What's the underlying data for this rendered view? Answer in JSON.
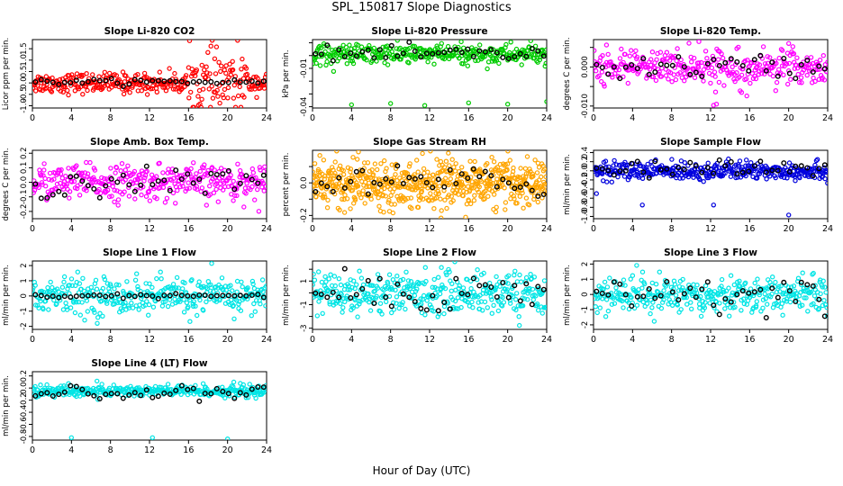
{
  "figure": {
    "title": "SPL_150817  Slope Diagnostics",
    "xlabel": "Hour of Day (UTC)"
  },
  "chart_data": [
    {
      "id": "co2",
      "type": "scatter",
      "title": "Slope Li-820 CO2",
      "ylabel": "Licor ppm per min.",
      "color": "#ff0000",
      "xlim": [
        0,
        24
      ],
      "ylim": [
        -1.1,
        1.9
      ],
      "xticks": [
        0,
        4,
        8,
        12,
        16,
        20,
        24
      ],
      "yticks": [
        -1,
        -0.5,
        0,
        0.5,
        1,
        1.5
      ],
      "yticklabels": [
        "-1.0",
        "-0.5",
        "0.0",
        "0.5",
        "1.0",
        "1.5"
      ],
      "colored": {
        "n": 340,
        "sd": 0.22,
        "late_sd": 0.7,
        "late_start": 16,
        "late_end": 22
      },
      "black": {
        "n": 40,
        "mean": 0.05,
        "sd": 0.06
      }
    },
    {
      "id": "pressure",
      "type": "scatter",
      "title": "Slope Li-820 Pressure",
      "ylabel": "kPa per min.",
      "color": "#00cc00",
      "xlim": [
        0,
        24
      ],
      "ylim": [
        -0.041,
        0.0125
      ],
      "xticks": [
        0,
        4,
        8,
        12,
        16,
        20,
        24
      ],
      "yticks": [
        -0.04,
        -0.03,
        -0.02,
        -0.01,
        0,
        0.01
      ],
      "yticklabels": [
        "-0.04",
        "",
        "",
        "-0.01",
        "",
        ""
      ],
      "colored": {
        "n": 340,
        "mean": 0.001,
        "sd": 0.004
      },
      "black": {
        "n": 40,
        "mean": 0.001,
        "sd": 0.003
      },
      "outliers": [
        [
          4.0,
          -0.0385
        ],
        [
          8.0,
          -0.0375
        ],
        [
          11.5,
          -0.039
        ],
        [
          16.0,
          -0.037
        ],
        [
          20.0,
          -0.038
        ],
        [
          24.0,
          -0.036
        ]
      ]
    },
    {
      "id": "temp",
      "type": "scatter",
      "title": "Slope Li-820 Temp.",
      "ylabel": "degrees C per min.",
      "color": "#ff00ff",
      "xlim": [
        0,
        24
      ],
      "ylim": [
        -0.0105,
        0.007
      ],
      "xticks": [
        0,
        4,
        8,
        12,
        16,
        20,
        24
      ],
      "yticks": [
        -0.01,
        -0.005,
        0,
        0.005
      ],
      "yticklabels": [
        "-0.010",
        "",
        "0.000",
        ""
      ],
      "colored": {
        "n": 340,
        "mean": 0.0,
        "sd": 0.0022
      },
      "black": {
        "n": 40,
        "mean": 0.0,
        "sd": 0.0015
      },
      "outliers": [
        [
          12.3,
          -0.0098
        ],
        [
          12.6,
          -0.0095
        ],
        [
          10.8,
          0.0065
        ],
        [
          20.0,
          0.006
        ]
      ]
    },
    {
      "id": "ambtemp",
      "type": "scatter",
      "title": "Slope Amb. Box Temp.",
      "ylabel": "degrees C per min.",
      "color": "#ff00ff",
      "xlim": [
        0,
        24
      ],
      "ylim": [
        -0.25,
        0.22
      ],
      "xticks": [
        0,
        4,
        8,
        12,
        16,
        20,
        24
      ],
      "yticks": [
        -0.2,
        -0.1,
        0,
        0.1,
        0.2
      ],
      "yticklabels": [
        "-0.2",
        "-0.1",
        "0.0",
        "0.1",
        "0.2"
      ],
      "colored": {
        "n": 360,
        "mean": 0.0,
        "sd": 0.06
      },
      "black": {
        "n": 40,
        "mean": 0.0,
        "sd": 0.05
      }
    },
    {
      "id": "rh",
      "type": "scatter",
      "title": "Slope Gas Stream RH",
      "ylabel": "percent per min.",
      "color": "#ffa500",
      "xlim": [
        0,
        24
      ],
      "ylim": [
        -0.22,
        0.2
      ],
      "xticks": [
        0,
        4,
        8,
        12,
        16,
        20,
        24
      ],
      "yticks": [
        -0.2,
        -0.1,
        0,
        0.1
      ],
      "yticklabels": [
        "-0.2",
        "",
        "0.0",
        ""
      ],
      "colored": {
        "n": 620,
        "mean": 0.0,
        "sd": 0.07
      },
      "black": {
        "n": 40,
        "mean": 0.0,
        "sd": 0.05
      }
    },
    {
      "id": "sampleflow",
      "type": "scatter",
      "title": "Slope Sample Flow",
      "ylabel": "ml/min per min.",
      "color": "#0000dd",
      "xlim": [
        0,
        24
      ],
      "ylim": [
        -1.05,
        0.45
      ],
      "xticks": [
        0,
        4,
        8,
        12,
        16,
        20,
        24
      ],
      "yticks": [
        -1.0,
        -0.8,
        -0.6,
        -0.4,
        -0.2,
        0,
        0.2,
        0.4
      ],
      "yticklabels": [
        "-1.0",
        "-0.8",
        "-0.6",
        "-0.4",
        "-0.2",
        "0.0",
        "0.2",
        "0.4"
      ],
      "colored": {
        "n": 380,
        "mean": 0.0,
        "sd": 0.1
      },
      "black": {
        "n": 40,
        "mean": 0.05,
        "sd": 0.1
      },
      "outliers": [
        [
          0.3,
          -0.5
        ],
        [
          5.0,
          -0.75
        ],
        [
          12.3,
          -0.75
        ],
        [
          20.0,
          -0.97
        ]
      ]
    },
    {
      "id": "line1",
      "type": "scatter",
      "title": "Slope Line 1 Flow",
      "ylabel": "ml/min per min.",
      "color": "#00e5e5",
      "xlim": [
        0,
        24
      ],
      "ylim": [
        -2.2,
        2.3
      ],
      "xticks": [
        0,
        4,
        8,
        12,
        16,
        20,
        24
      ],
      "yticks": [
        -2,
        -1,
        0,
        1,
        2
      ],
      "yticklabels": [
        "-2",
        "-1",
        "0",
        "1",
        "2"
      ],
      "colored": {
        "n": 360,
        "mean": 0.0,
        "sd": 0.6
      },
      "black": {
        "n": 40,
        "mean": 0.0,
        "sd": 0.06
      }
    },
    {
      "id": "line2",
      "type": "scatter",
      "title": "Slope Line 2 Flow",
      "ylabel": "ml/min per min.",
      "color": "#00e5e5",
      "xlim": [
        0,
        24
      ],
      "ylim": [
        -3.1,
        2.7
      ],
      "xticks": [
        0,
        4,
        8,
        12,
        16,
        20,
        24
      ],
      "yticks": [
        -3,
        -2,
        -1,
        0,
        1,
        2
      ],
      "yticklabels": [
        "-3",
        "",
        "-1",
        "",
        "1",
        ""
      ],
      "colored": {
        "n": 380,
        "mean": 0.0,
        "sd": 0.9
      },
      "black": {
        "n": 40,
        "mean": 0.1,
        "sd": 0.9
      }
    },
    {
      "id": "line3",
      "type": "scatter",
      "title": "Slope Line 3 Flow",
      "ylabel": "ml/min per min.",
      "color": "#00e5e5",
      "xlim": [
        0,
        24
      ],
      "ylim": [
        -2.3,
        2.2
      ],
      "xticks": [
        0,
        4,
        8,
        12,
        16,
        20,
        24
      ],
      "yticks": [
        -2,
        -1,
        0,
        1,
        2
      ],
      "yticklabels": [
        "-2",
        "-1",
        "0",
        "1",
        "2"
      ],
      "colored": {
        "n": 360,
        "mean": 0.0,
        "sd": 0.6
      },
      "black": {
        "n": 40,
        "mean": 0.1,
        "sd": 0.6
      }
    },
    {
      "id": "line4",
      "type": "scatter",
      "title": "Slope Line 4 (LT) Flow",
      "ylabel": "ml/min per min.",
      "color": "#00e5e5",
      "xlim": [
        0,
        24
      ],
      "ylim": [
        -0.86,
        0.27
      ],
      "xticks": [
        0,
        4,
        8,
        12,
        16,
        20,
        24
      ],
      "yticks": [
        -0.8,
        -0.6,
        -0.4,
        -0.2,
        0,
        0.2
      ],
      "yticklabels": [
        "-0.8",
        "-0.6",
        "-0.4",
        "-0.2",
        "0.0",
        "0.2"
      ],
      "colored": {
        "n": 360,
        "mean": -0.05,
        "sd": 0.05
      },
      "black": {
        "n": 40,
        "mean": -0.08,
        "sd": 0.05
      },
      "outliers": [
        [
          4.0,
          -0.82
        ],
        [
          12.3,
          -0.82
        ],
        [
          20.0,
          -0.84
        ]
      ]
    }
  ]
}
